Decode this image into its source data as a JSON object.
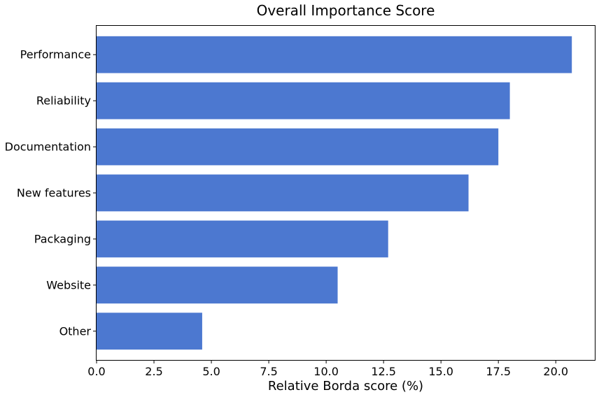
{
  "chart_data": {
    "type": "bar",
    "orientation": "horizontal",
    "title": "Overall Importance Score",
    "xlabel": "Relative Borda score (%)",
    "ylabel": "",
    "categories": [
      "Performance",
      "Reliability",
      "Documentation",
      "New features",
      "Packaging",
      "Website",
      "Other"
    ],
    "values": [
      20.7,
      18.0,
      17.5,
      16.2,
      12.7,
      10.5,
      4.6
    ],
    "xlim": [
      0,
      21.7
    ],
    "xticks": [
      0.0,
      2.5,
      5.0,
      7.5,
      10.0,
      12.5,
      15.0,
      17.5,
      20.0
    ],
    "xtick_labels": [
      "0.0",
      "2.5",
      "5.0",
      "7.5",
      "10.0",
      "12.5",
      "15.0",
      "17.5",
      "20.0"
    ],
    "bar_color": "#4c78d0",
    "grid": false,
    "legend": "none"
  }
}
